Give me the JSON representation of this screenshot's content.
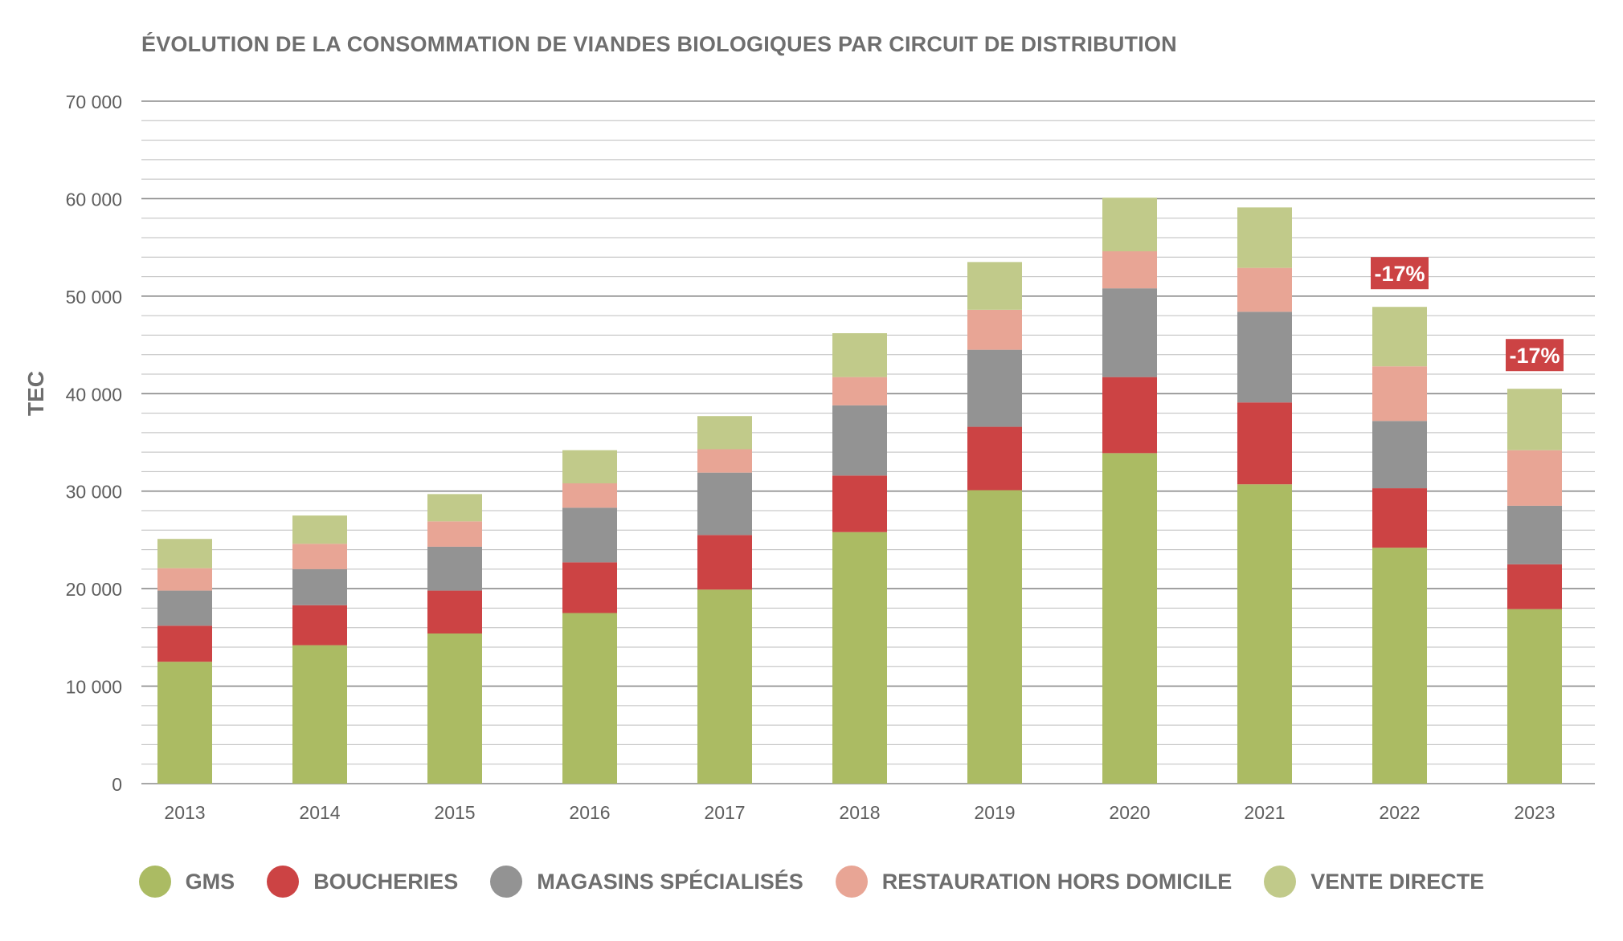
{
  "chart_data": {
    "type": "bar",
    "stacked": true,
    "title": "ÉVOLUTION DE LA CONSOMMATION DE VIANDES BIOLOGIQUES PAR CIRCUIT DE DISTRIBUTION",
    "ylabel": "TEC",
    "xlabel": "",
    "ylim": [
      0,
      70000
    ],
    "yticks": [
      0,
      10000,
      20000,
      30000,
      40000,
      50000,
      60000,
      70000
    ],
    "ytick_labels": [
      "0",
      "10 000",
      "20 000",
      "30 000",
      "40 000",
      "50 000",
      "60 000",
      "70 000"
    ],
    "minor_grid_step": 2000,
    "grid": true,
    "legend_position": "bottom",
    "categories": [
      "2013",
      "2014",
      "2015",
      "2016",
      "2017",
      "2018",
      "2019",
      "2020",
      "2021",
      "2022",
      "2023"
    ],
    "series": [
      {
        "name": "GMS",
        "color": "#abbb63",
        "values": [
          12500,
          14200,
          15400,
          17500,
          19900,
          25800,
          30100,
          33900,
          30700,
          24200,
          17900
        ]
      },
      {
        "name": "BOUCHERIES",
        "color": "#cc4344",
        "values": [
          3700,
          4100,
          4400,
          5200,
          5600,
          5800,
          6500,
          7800,
          8400,
          6100,
          4600
        ]
      },
      {
        "name": "MAGASINS SPÉCIALISÉS",
        "color": "#939393",
        "values": [
          3600,
          3700,
          4500,
          5600,
          6400,
          7200,
          7900,
          9100,
          9300,
          6900,
          6000
        ]
      },
      {
        "name": "RESTAURATION HORS DOMICILE",
        "color": "#e8a595",
        "values": [
          2300,
          2600,
          2600,
          2500,
          2400,
          2900,
          4100,
          3800,
          4500,
          5600,
          5700
        ]
      },
      {
        "name": "VENTE DIRECTE",
        "color": "#c1ca8a",
        "values": [
          3000,
          2900,
          2800,
          3400,
          3400,
          4500,
          4900,
          5500,
          6200,
          6100,
          6300
        ]
      }
    ],
    "annotations": [
      {
        "category": "2022",
        "text": "-17%",
        "color": "#cc4344"
      },
      {
        "category": "2023",
        "text": "-17%",
        "color": "#cc4344"
      }
    ]
  }
}
